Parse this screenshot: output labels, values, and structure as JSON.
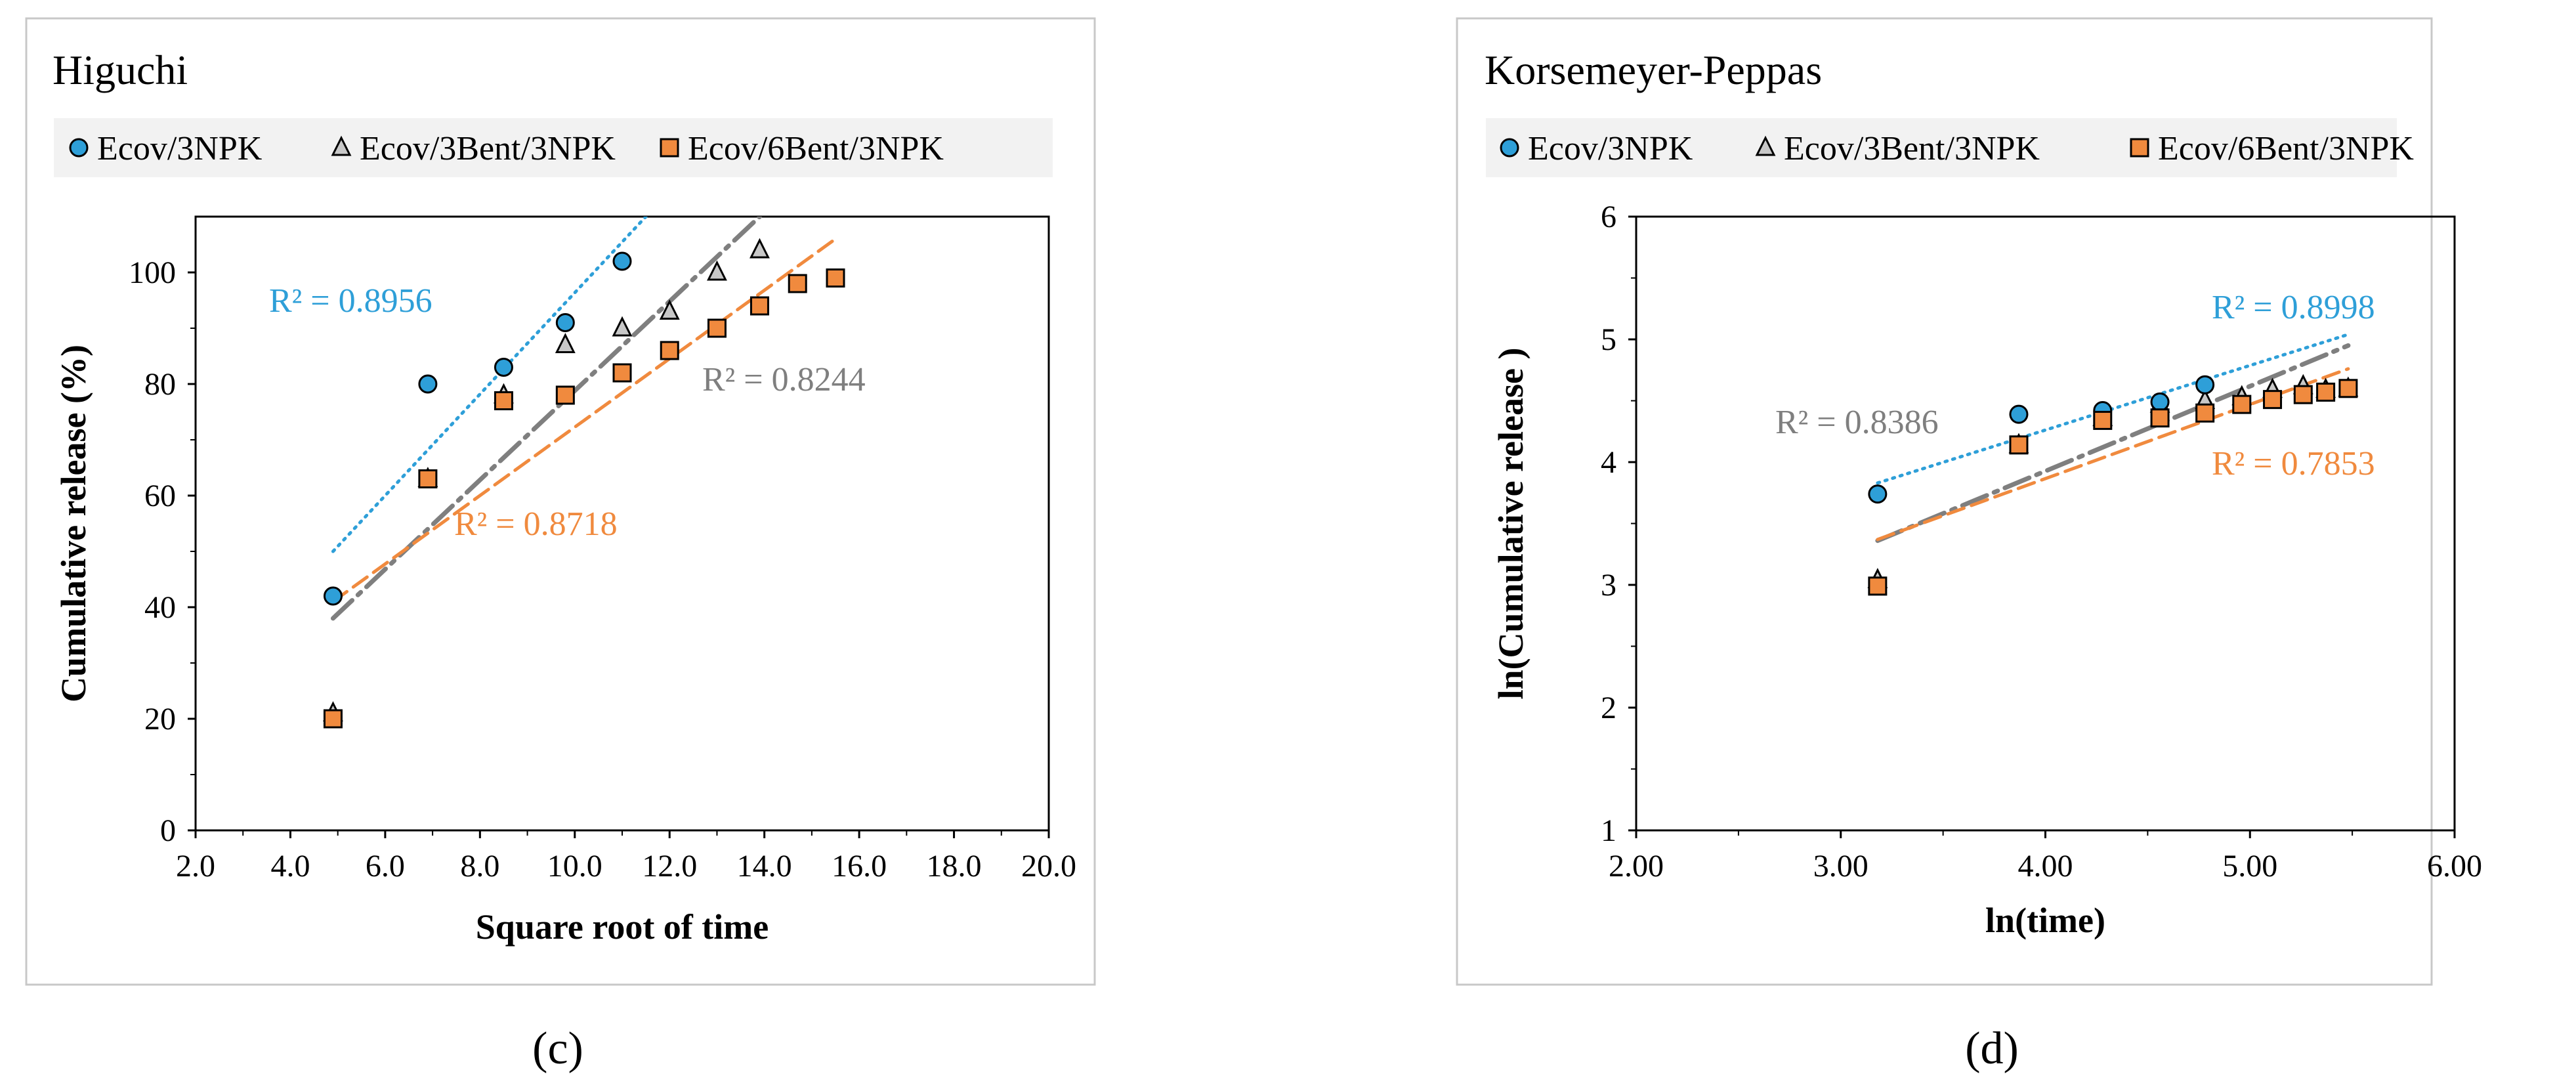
{
  "panels": [
    {
      "subfigure": "(c)",
      "chart_data": {
        "type": "scatter",
        "title": "Higuchi",
        "xlabel": "Square root of time",
        "ylabel": "Cumulative release (%)",
        "xlim": [
          2.0,
          20.0
        ],
        "ylim": [
          0,
          110
        ],
        "xticks": [
          "2.0",
          "4.0",
          "6.0",
          "8.0",
          "10.0",
          "12.0",
          "14.0",
          "16.0",
          "18.0",
          "20.0"
        ],
        "yticks": [
          "0",
          "20",
          "40",
          "60",
          "80",
          "100"
        ],
        "grid": false,
        "legend": "top",
        "series": [
          {
            "name": "Ecov/3NPK",
            "marker": "circle",
            "color": "#2e9fd8",
            "x": [
              4.9,
              6.9,
              8.5,
              9.8,
              11.0
            ],
            "y": [
              42,
              80,
              83,
              91,
              102
            ],
            "trend": {
              "x": [
                4.9,
                11.5
              ],
              "y": [
                50,
                110
              ],
              "style": "dotted",
              "r2": "R² = 0.8956"
            }
          },
          {
            "name": "Ecov/3Bent/3NPK",
            "marker": "triangle",
            "color": "#9a9a9a",
            "x": [
              4.9,
              6.9,
              8.5,
              9.8,
              11.0,
              12.0,
              13.0,
              13.9
            ],
            "y": [
              21,
              63,
              78,
              87,
              90,
              93,
              100,
              104
            ],
            "trend": {
              "x": [
                4.9,
                13.9
              ],
              "y": [
                38,
                110
              ],
              "style": "dashdot",
              "r2": "R² = 0.8244"
            }
          },
          {
            "name": "Ecov/6Bent/3NPK",
            "marker": "square",
            "color": "#f08a3e",
            "x": [
              4.9,
              6.9,
              8.5,
              9.8,
              11.0,
              12.0,
              13.0,
              13.9,
              14.7,
              15.5
            ],
            "y": [
              20,
              63,
              77,
              78,
              82,
              86,
              90,
              94,
              98,
              99
            ],
            "trend": {
              "x": [
                4.9,
                15.5
              ],
              "y": [
                41,
                106
              ],
              "style": "dashed",
              "r2": "R² = 0.8718"
            }
          }
        ]
      }
    },
    {
      "subfigure": "(d)",
      "chart_data": {
        "type": "scatter",
        "title": "Korsemeyer-Peppas",
        "xlabel": "ln(time)",
        "ylabel": "ln(Cumulative release )",
        "xlim": [
          2.0,
          6.0
        ],
        "ylim": [
          1,
          6
        ],
        "xticks": [
          "2.00",
          "3.00",
          "4.00",
          "5.00",
          "6.00"
        ],
        "yticks": [
          "1",
          "2",
          "3",
          "4",
          "5",
          "6"
        ],
        "grid": false,
        "legend": "top",
        "series": [
          {
            "name": "Ecov/3NPK",
            "marker": "circle",
            "color": "#2e9fd8",
            "x": [
              3.18,
              3.87,
              4.28,
              4.56,
              4.78
            ],
            "y": [
              3.74,
              4.39,
              4.42,
              4.49,
              4.63
            ],
            "trend": {
              "x": [
                3.18,
                5.48
              ],
              "y": [
                3.83,
                5.04
              ],
              "style": "dotted",
              "r2": "R² = 0.8998"
            }
          },
          {
            "name": "Ecov/3Bent/3NPK",
            "marker": "triangle",
            "color": "#9a9a9a",
            "x": [
              3.18,
              3.87,
              4.28,
              4.56,
              4.78,
              4.96,
              5.11,
              5.26,
              5.37,
              5.48
            ],
            "y": [
              3.04,
              4.14,
              4.36,
              4.47,
              4.5,
              4.53,
              4.59,
              4.62,
              4.59,
              4.6
            ],
            "trend": {
              "x": [
                3.18,
                5.48
              ],
              "y": [
                3.36,
                4.95
              ],
              "style": "dashdot",
              "r2": "R² = 0.8386"
            }
          },
          {
            "name": "Ecov/6Bent/3NPK",
            "marker": "square",
            "color": "#f08a3e",
            "x": [
              3.18,
              3.87,
              4.28,
              4.56,
              4.78,
              4.96,
              5.11,
              5.26,
              5.37,
              5.48
            ],
            "y": [
              2.99,
              4.14,
              4.34,
              4.36,
              4.4,
              4.47,
              4.51,
              4.55,
              4.57,
              4.6
            ],
            "trend": {
              "x": [
                3.18,
                5.48
              ],
              "y": [
                3.37,
                4.76
              ],
              "style": "dashed",
              "r2": "R² = 0.7853"
            }
          }
        ]
      }
    }
  ]
}
